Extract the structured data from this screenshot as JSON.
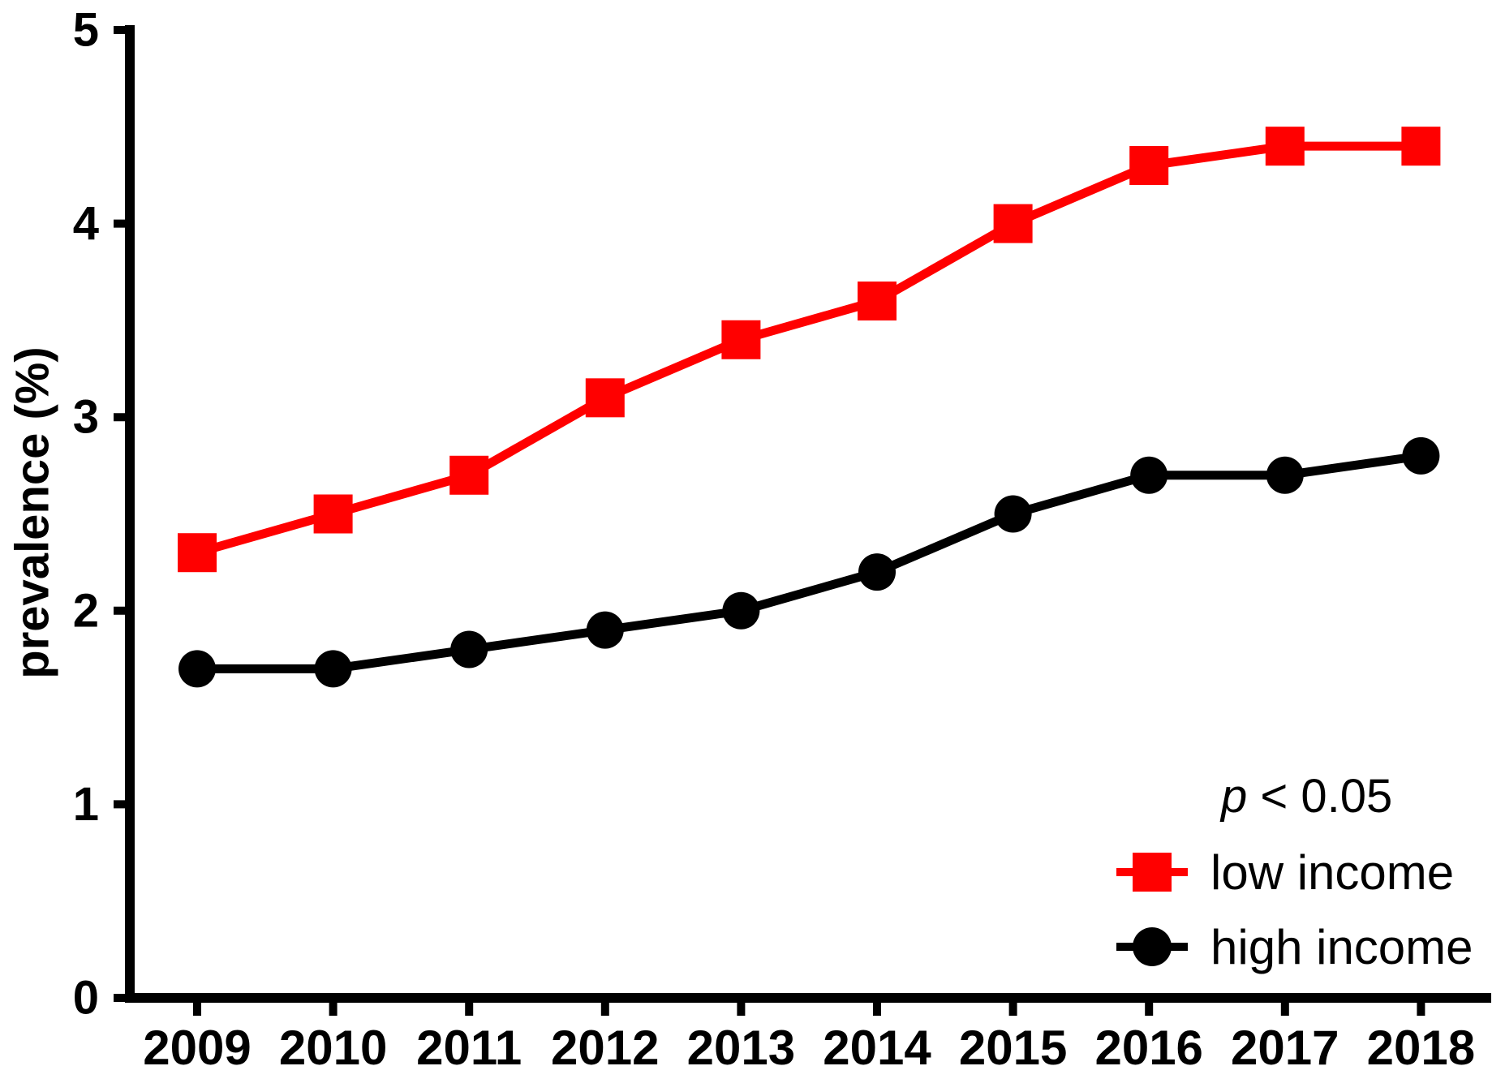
{
  "figure": {
    "background": "#ffffff",
    "series_line_color_low": "#ff0000",
    "series_line_color_high": "#000000"
  },
  "chart_data": {
    "type": "line",
    "categories": [
      "2009",
      "2010",
      "2011",
      "2012",
      "2013",
      "2014",
      "2015",
      "2016",
      "2017",
      "2018"
    ],
    "series": [
      {
        "name": "low income",
        "color": "#ff0000",
        "marker": "square",
        "values": [
          2.3,
          2.5,
          2.7,
          3.1,
          3.4,
          3.6,
          4.0,
          4.3,
          4.4,
          4.4
        ]
      },
      {
        "name": "high income",
        "color": "#000000",
        "marker": "circle",
        "values": [
          1.7,
          1.7,
          1.8,
          1.9,
          2.0,
          2.2,
          2.5,
          2.7,
          2.7,
          2.8
        ]
      }
    ],
    "title": "",
    "xlabel": "",
    "ylabel": "prevalence (%)",
    "ylim": [
      0,
      5
    ],
    "yticks": [
      0,
      1,
      2,
      3,
      4,
      5
    ],
    "grid": false,
    "legend_position": "bottom-right",
    "annotation": "p < 0.05"
  }
}
